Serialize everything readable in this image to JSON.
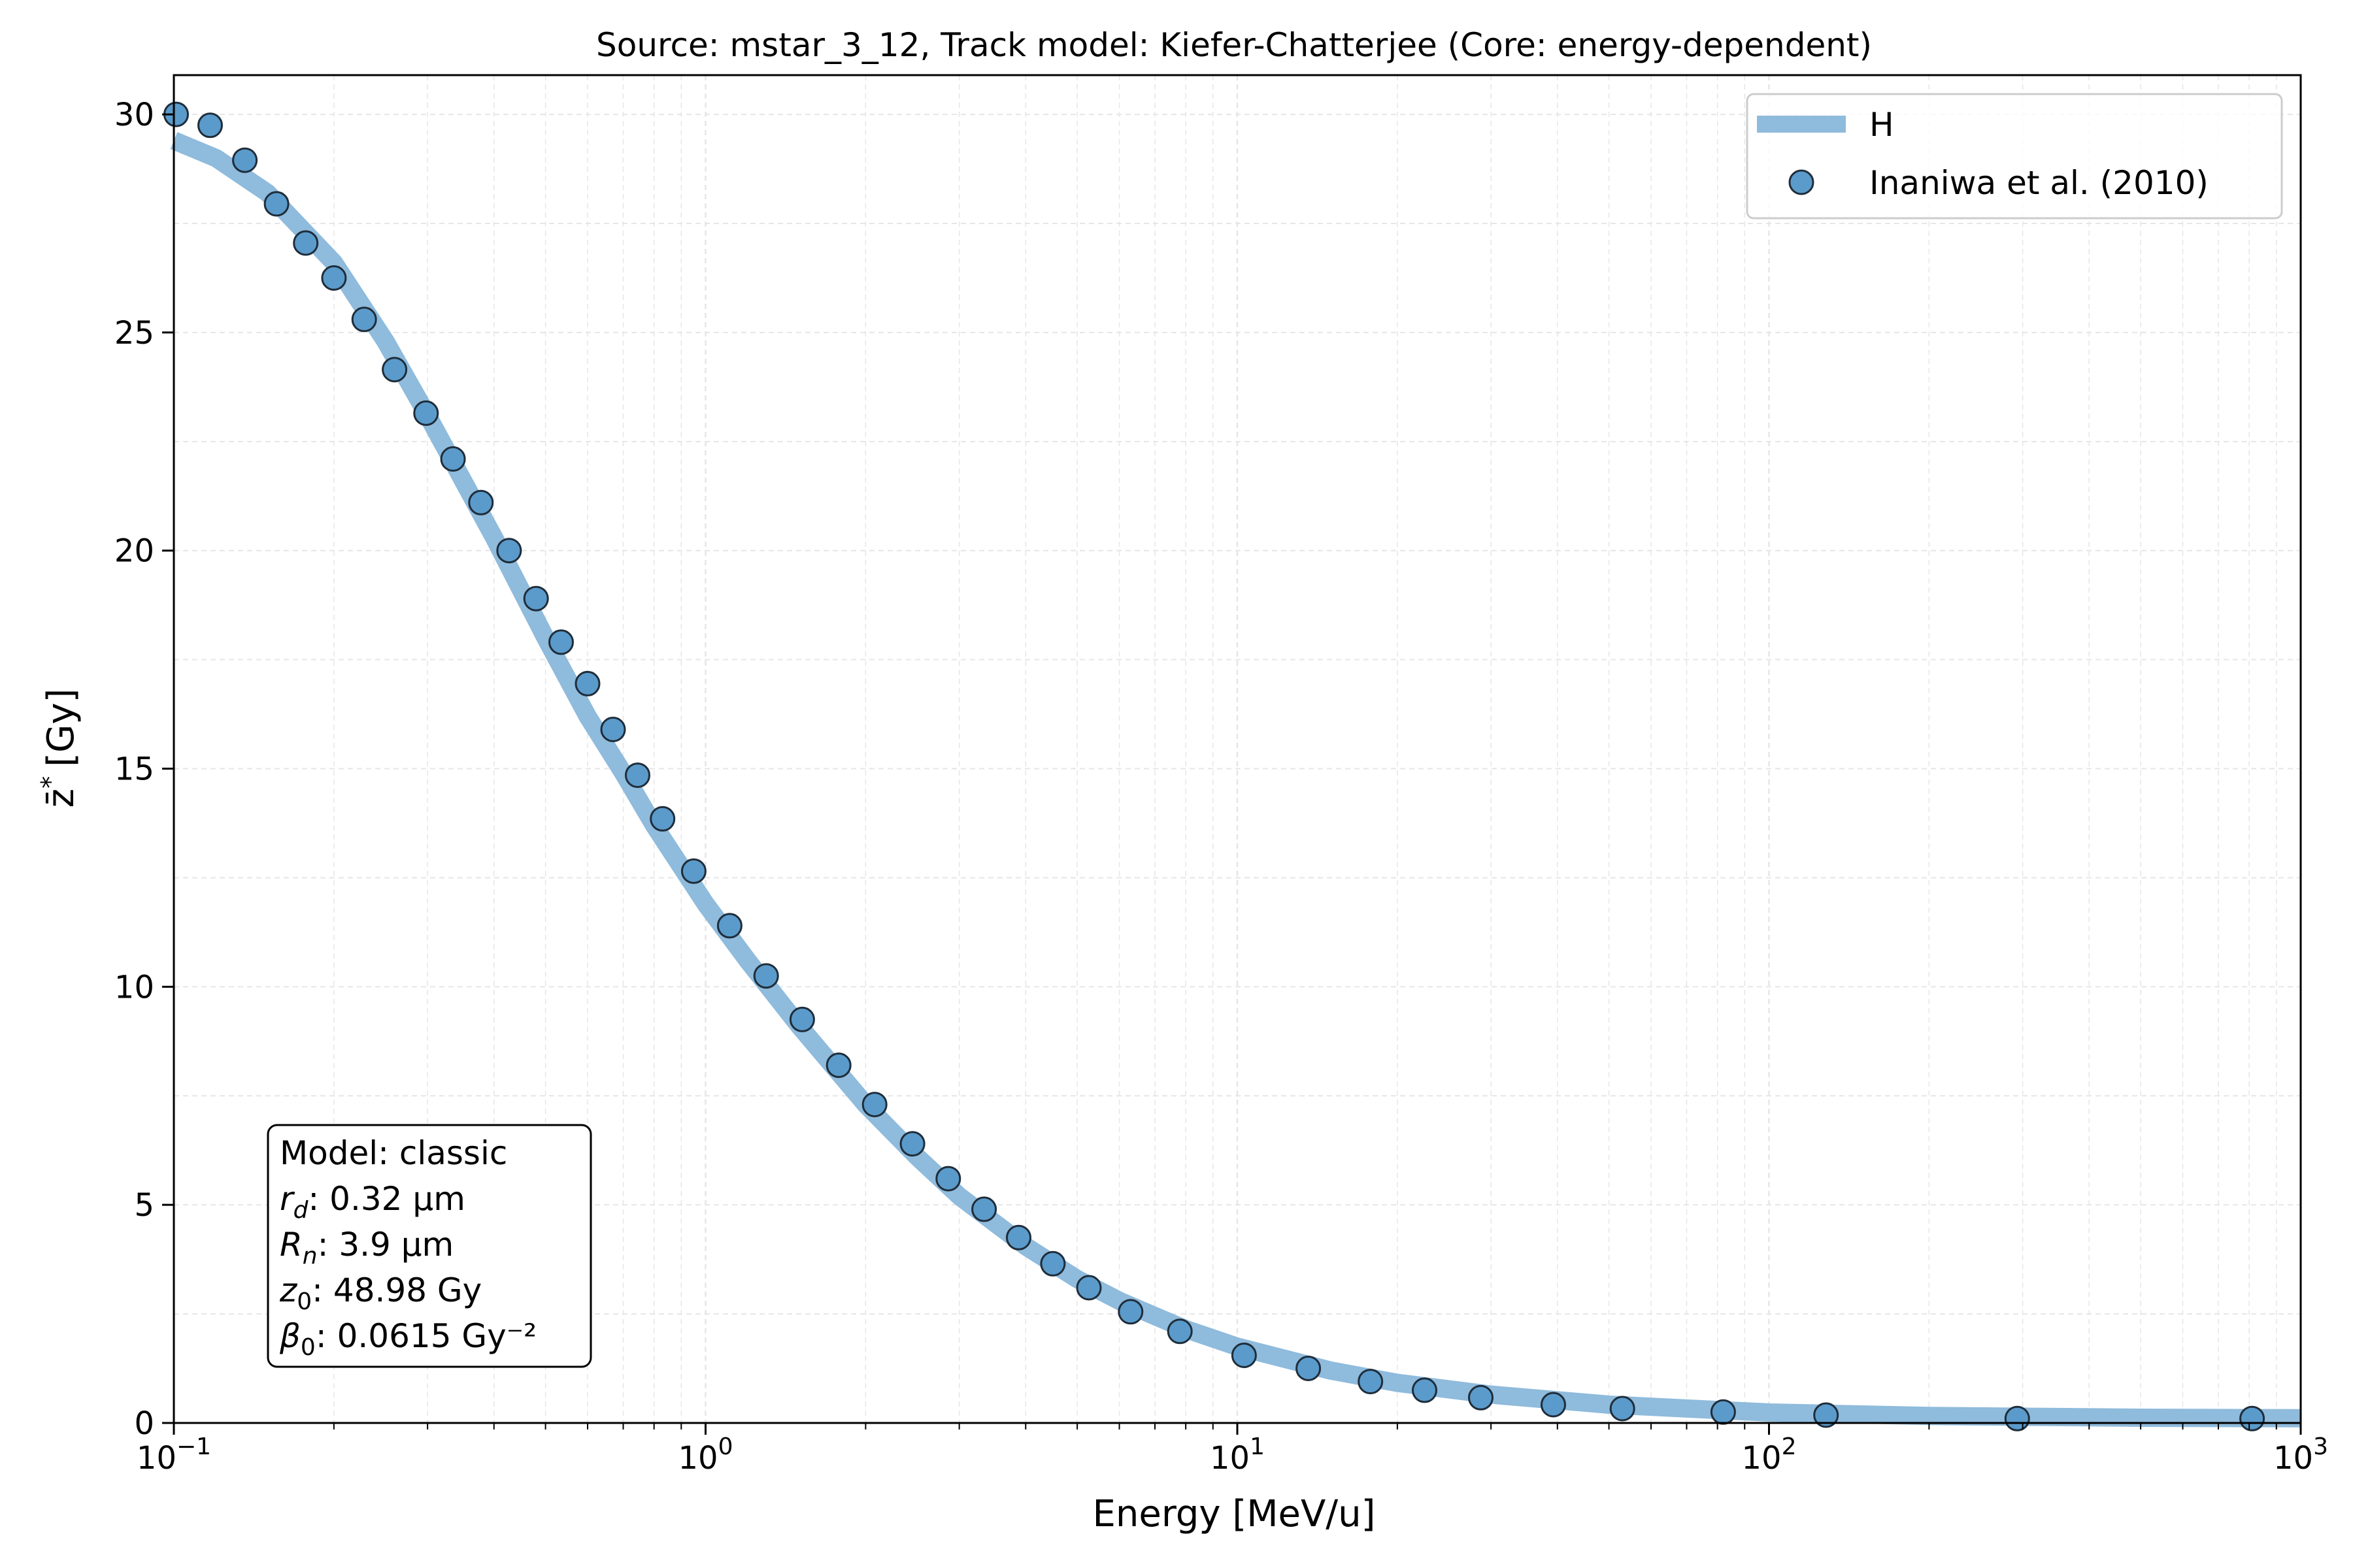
{
  "chart_data": {
    "type": "line",
    "title": "Source: mstar_3_12, Track model: Kiefer-Chatterjee (Core: energy-dependent)",
    "xlabel": "Energy [MeV/u]",
    "ylabel_main": "z̄",
    "ylabel_sup": "*",
    "ylabel_unit": "[Gy]",
    "xscale": "log",
    "xlim": [
      0.1,
      1000
    ],
    "ylim": [
      0,
      30.9
    ],
    "grid": true,
    "legend_position": "top-right",
    "x_ticks": [
      {
        "value": 0.1,
        "base": "10",
        "exp": "−1"
      },
      {
        "value": 1,
        "base": "10",
        "exp": "0"
      },
      {
        "value": 10,
        "base": "10",
        "exp": "1"
      },
      {
        "value": 100,
        "base": "10",
        "exp": "2"
      },
      {
        "value": 1000,
        "base": "10",
        "exp": "3"
      }
    ],
    "y_ticks": [
      {
        "value": 0,
        "label": "0"
      },
      {
        "value": 5,
        "label": "5"
      },
      {
        "value": 10,
        "label": "10"
      },
      {
        "value": 15,
        "label": "15"
      },
      {
        "value": 20,
        "label": "20"
      },
      {
        "value": 25,
        "label": "25"
      },
      {
        "value": 30,
        "label": "30"
      }
    ],
    "series": [
      {
        "name": "H",
        "kind": "line",
        "color": "#8fbbdc",
        "x": [
          0.1,
          0.12,
          0.15,
          0.2,
          0.25,
          0.3,
          0.4,
          0.5,
          0.6,
          0.7,
          0.8,
          1.0,
          1.2,
          1.5,
          2.0,
          2.5,
          3.0,
          4.0,
          5.0,
          6.0,
          8.0,
          10,
          15,
          20,
          30,
          50,
          100,
          200,
          500,
          1000
        ],
        "y": [
          29.4,
          29.0,
          28.2,
          26.6,
          24.8,
          23.1,
          20.3,
          18.0,
          16.2,
          14.9,
          13.7,
          11.9,
          10.6,
          9.1,
          7.3,
          6.1,
          5.2,
          4.05,
          3.3,
          2.8,
          2.15,
          1.75,
          1.2,
          0.92,
          0.65,
          0.42,
          0.24,
          0.16,
          0.12,
          0.11
        ]
      },
      {
        "name": "Inaniwa et al. (2010)",
        "kind": "scatter",
        "color": "#5b9bcb",
        "edge_color": "#1f2d3a",
        "x": [
          0.101,
          0.117,
          0.136,
          0.156,
          0.177,
          0.2,
          0.228,
          0.26,
          0.298,
          0.335,
          0.378,
          0.427,
          0.48,
          0.535,
          0.6,
          0.67,
          0.745,
          0.83,
          0.95,
          1.11,
          1.3,
          1.52,
          1.78,
          2.08,
          2.45,
          2.86,
          3.34,
          3.88,
          4.5,
          5.26,
          6.3,
          7.8,
          10.3,
          13.6,
          17.8,
          22.5,
          28.7,
          39.3,
          53,
          82,
          128,
          293,
          810
        ],
        "y": [
          30.0,
          29.75,
          28.95,
          27.95,
          27.05,
          26.25,
          25.3,
          24.15,
          23.15,
          22.1,
          21.1,
          20.0,
          18.9,
          17.9,
          16.95,
          15.9,
          14.85,
          13.85,
          12.65,
          11.4,
          10.25,
          9.25,
          8.2,
          7.3,
          6.4,
          5.6,
          4.9,
          4.25,
          3.65,
          3.1,
          2.55,
          2.1,
          1.55,
          1.25,
          0.95,
          0.75,
          0.58,
          0.42,
          0.33,
          0.25,
          0.18,
          0.1,
          0.1
        ]
      }
    ],
    "annotation": {
      "line1": "Model: classic",
      "rd_symbol": "r",
      "rd_sub": "d",
      "rd_value": ": 0.32 µm",
      "rn_symbol": "R",
      "rn_sub": "n",
      "rn_value": ": 3.9 µm",
      "z0_symbol": "z",
      "z0_sub": "0",
      "z0_value": ": 48.98 Gy",
      "b0_symbol": "β",
      "b0_sub": "0",
      "b0_value": ": 0.0615 Gy⁻²"
    }
  }
}
